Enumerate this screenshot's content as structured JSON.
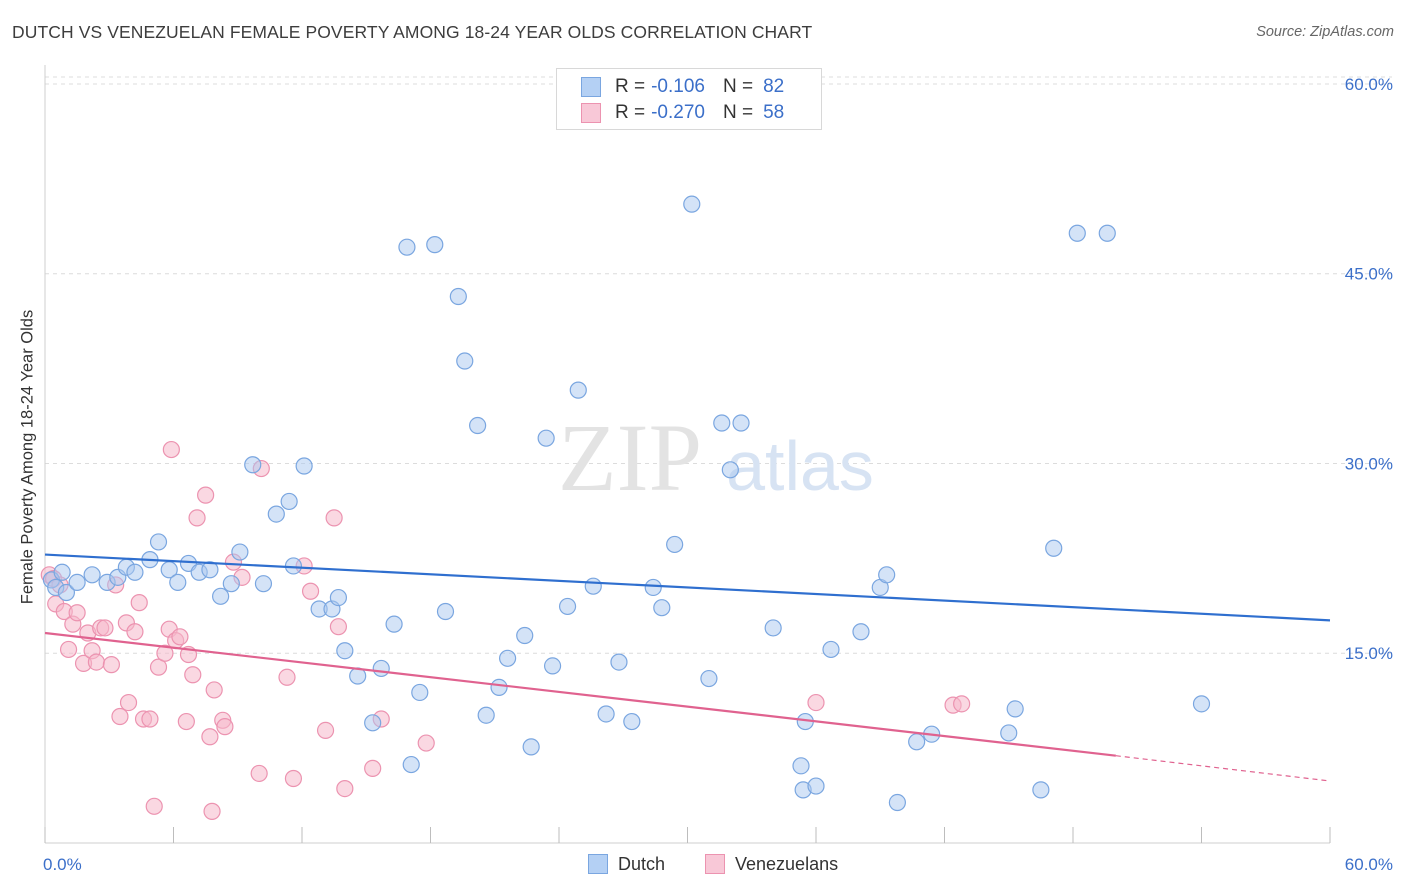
{
  "title": "DUTCH VS VENEZUELAN FEMALE POVERTY AMONG 18-24 YEAR OLDS CORRELATION CHART",
  "source": "Source: ZipAtlas.com",
  "watermark": {
    "zip": "ZIP",
    "atlas": "atlas"
  },
  "legend": {
    "rows": [
      {
        "r_label": "R =",
        "r_value": "-0.106",
        "n_label": "N =",
        "n_value": "82"
      },
      {
        "r_label": "R =",
        "r_value": "-0.270",
        "n_label": "N =",
        "n_value": "58"
      }
    ]
  },
  "bottom_legend": {
    "dutch": "Dutch",
    "venezuelans": "Venezuelans"
  },
  "colors": {
    "dutch_fill": "#a9c8f0",
    "dutch_stroke": "#7aa6e0",
    "dutch_line": "#2f6fcf",
    "ven_fill": "#f5b8cb",
    "ven_stroke": "#ec93b0",
    "ven_line": "#e0628f",
    "tick_label": "#3b6fc9",
    "grid": "#dcdcdc"
  },
  "chart_data": {
    "type": "scatter",
    "title": "DUTCH VS VENEZUELAN FEMALE POVERTY AMONG 18-24 YEAR OLDS CORRELATION CHART",
    "xlabel": "",
    "ylabel": "Female Poverty Among 18-24 Year Olds",
    "xlim": [
      0,
      60
    ],
    "ylim": [
      0,
      61.5
    ],
    "x_tick_labels": [
      "0.0%",
      "60.0%"
    ],
    "y_ticks": [
      15,
      30,
      45,
      60
    ],
    "y_tick_labels": [
      "15.0%",
      "30.0%",
      "45.0%",
      "60.0%"
    ],
    "grid": true,
    "series": [
      {
        "name": "Dutch",
        "r": -0.106,
        "n": 82,
        "trend": {
          "x": [
            0,
            60
          ],
          "y": [
            22.8,
            17.6
          ]
        },
        "points": [
          [
            0.3,
            20.8
          ],
          [
            0.5,
            20.2
          ],
          [
            0.8,
            21.4
          ],
          [
            1.0,
            19.8
          ],
          [
            1.5,
            20.6
          ],
          [
            2.2,
            21.2
          ],
          [
            2.9,
            20.6
          ],
          [
            3.4,
            21.0
          ],
          [
            3.8,
            21.8
          ],
          [
            4.2,
            21.4
          ],
          [
            4.9,
            22.4
          ],
          [
            5.3,
            23.8
          ],
          [
            5.8,
            21.6
          ],
          [
            6.2,
            20.6
          ],
          [
            6.7,
            22.1
          ],
          [
            7.2,
            21.4
          ],
          [
            7.7,
            21.6
          ],
          [
            8.2,
            19.5
          ],
          [
            8.7,
            20.5
          ],
          [
            9.1,
            23.0
          ],
          [
            9.7,
            29.9
          ],
          [
            10.2,
            20.5
          ],
          [
            10.8,
            26.0
          ],
          [
            11.4,
            27.0
          ],
          [
            11.6,
            21.9
          ],
          [
            12.1,
            29.8
          ],
          [
            12.8,
            18.5
          ],
          [
            13.4,
            18.5
          ],
          [
            13.7,
            19.4
          ],
          [
            14.0,
            15.2
          ],
          [
            14.6,
            13.2
          ],
          [
            15.3,
            9.5
          ],
          [
            15.7,
            13.8
          ],
          [
            16.3,
            17.3
          ],
          [
            16.9,
            47.1
          ],
          [
            17.1,
            6.2
          ],
          [
            17.5,
            11.9
          ],
          [
            18.2,
            47.3
          ],
          [
            18.7,
            18.3
          ],
          [
            19.3,
            43.2
          ],
          [
            19.6,
            38.1
          ],
          [
            20.2,
            33.0
          ],
          [
            20.6,
            10.1
          ],
          [
            21.2,
            12.3
          ],
          [
            21.6,
            14.6
          ],
          [
            22.4,
            16.4
          ],
          [
            22.7,
            7.6
          ],
          [
            23.4,
            32.0
          ],
          [
            23.7,
            14.0
          ],
          [
            24.4,
            18.7
          ],
          [
            24.9,
            35.8
          ],
          [
            25.6,
            20.3
          ],
          [
            26.2,
            10.2
          ],
          [
            26.8,
            14.3
          ],
          [
            27.4,
            9.6
          ],
          [
            28.4,
            20.2
          ],
          [
            28.8,
            18.6
          ],
          [
            29.4,
            23.6
          ],
          [
            30.2,
            50.5
          ],
          [
            31.0,
            13.0
          ],
          [
            31.6,
            33.2
          ],
          [
            32.0,
            29.5
          ],
          [
            32.5,
            33.2
          ],
          [
            34.0,
            17.0
          ],
          [
            35.3,
            6.1
          ],
          [
            35.4,
            4.2
          ],
          [
            35.5,
            9.6
          ],
          [
            36.0,
            4.5
          ],
          [
            36.7,
            15.3
          ],
          [
            38.1,
            16.7
          ],
          [
            39.0,
            20.2
          ],
          [
            39.3,
            21.2
          ],
          [
            39.8,
            3.2
          ],
          [
            40.7,
            8.0
          ],
          [
            41.4,
            8.6
          ],
          [
            45.0,
            8.7
          ],
          [
            45.3,
            10.6
          ],
          [
            46.5,
            4.2
          ],
          [
            47.1,
            23.3
          ],
          [
            48.2,
            48.2
          ],
          [
            49.6,
            48.2
          ],
          [
            54.0,
            11.0
          ]
        ]
      },
      {
        "name": "Venezuelans",
        "r": -0.27,
        "n": 58,
        "trend": {
          "x": [
            0,
            50
          ],
          "y": [
            16.6,
            6.9
          ]
        },
        "trend_dashed": {
          "x": [
            50,
            60
          ],
          "y": [
            6.9,
            4.9
          ]
        },
        "points": [
          [
            0.2,
            21.2
          ],
          [
            0.4,
            20.9
          ],
          [
            0.5,
            18.9
          ],
          [
            0.7,
            20.4
          ],
          [
            0.9,
            18.3
          ],
          [
            1.1,
            15.3
          ],
          [
            1.3,
            17.3
          ],
          [
            1.5,
            18.2
          ],
          [
            1.8,
            14.2
          ],
          [
            2.0,
            16.6
          ],
          [
            2.2,
            15.2
          ],
          [
            2.4,
            14.3
          ],
          [
            2.6,
            17.0
          ],
          [
            2.8,
            17.0
          ],
          [
            3.1,
            14.1
          ],
          [
            3.3,
            20.4
          ],
          [
            3.5,
            10.0
          ],
          [
            3.8,
            17.4
          ],
          [
            3.9,
            11.1
          ],
          [
            4.2,
            16.7
          ],
          [
            4.4,
            19.0
          ],
          [
            4.6,
            9.8
          ],
          [
            4.9,
            9.8
          ],
          [
            5.1,
            2.9
          ],
          [
            5.3,
            13.9
          ],
          [
            5.6,
            15.0
          ],
          [
            5.8,
            16.9
          ],
          [
            5.9,
            31.1
          ],
          [
            6.1,
            16.0
          ],
          [
            6.3,
            16.3
          ],
          [
            6.6,
            9.6
          ],
          [
            6.7,
            14.9
          ],
          [
            6.9,
            13.3
          ],
          [
            7.1,
            25.7
          ],
          [
            7.5,
            27.5
          ],
          [
            7.7,
            8.4
          ],
          [
            7.8,
            2.5
          ],
          [
            7.9,
            12.1
          ],
          [
            8.3,
            9.7
          ],
          [
            8.4,
            9.2
          ],
          [
            8.8,
            22.2
          ],
          [
            9.2,
            21.0
          ],
          [
            10.0,
            5.5
          ],
          [
            10.1,
            29.6
          ],
          [
            11.3,
            13.1
          ],
          [
            11.6,
            5.1
          ],
          [
            12.1,
            21.9
          ],
          [
            12.4,
            19.9
          ],
          [
            13.1,
            8.9
          ],
          [
            13.5,
            25.7
          ],
          [
            13.7,
            17.1
          ],
          [
            14.0,
            4.3
          ],
          [
            15.3,
            5.9
          ],
          [
            15.7,
            9.8
          ],
          [
            17.8,
            7.9
          ],
          [
            36.0,
            11.1
          ],
          [
            42.4,
            10.9
          ],
          [
            42.8,
            11.0
          ]
        ]
      }
    ]
  }
}
